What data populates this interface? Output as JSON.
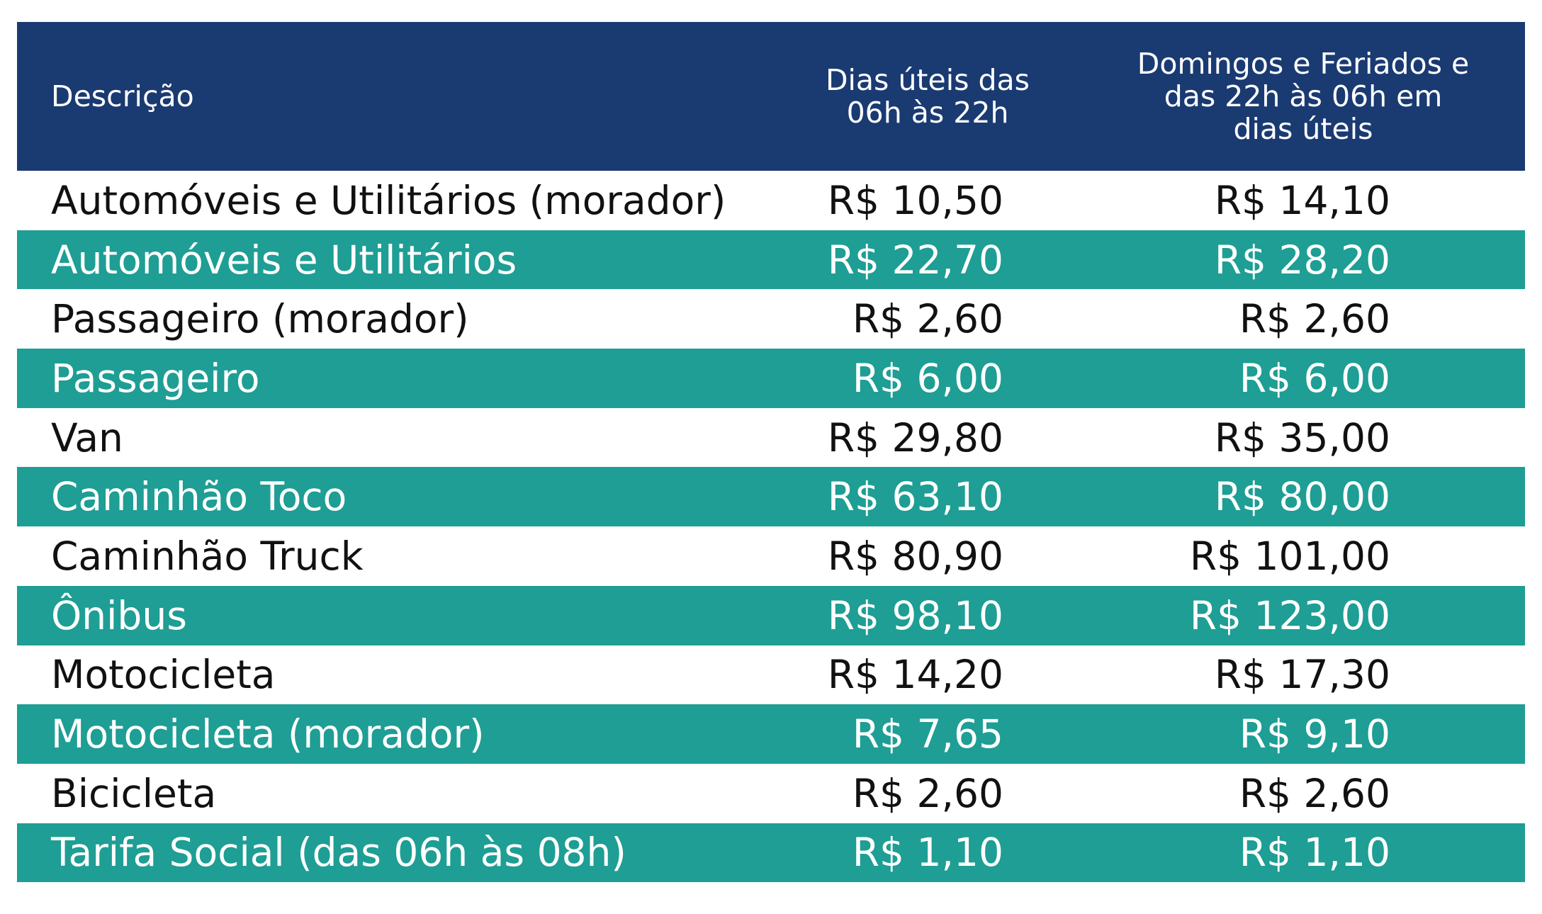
{
  "header": {
    "description": "Descrição",
    "col1_lines": [
      "Dias úteis das",
      "06h às 22h"
    ],
    "col2_lines": [
      "Domingos e Feriados e",
      "das 22h às 06h em",
      "dias úteis"
    ]
  },
  "colors": {
    "header_bg": "#1a3a72",
    "teal_row": "#1e9e94",
    "white_row": "#ffffff"
  },
  "rows": [
    {
      "description": "Automóveis e Utilitários (morador)",
      "weekday": "R$ 10,50",
      "holiday": "R$ 14,10",
      "style": "white"
    },
    {
      "description": "Automóveis e Utilitários",
      "weekday": "R$ 22,70",
      "holiday": "R$ 28,20",
      "style": "teal"
    },
    {
      "description": "Passageiro (morador)",
      "weekday": "R$ 2,60",
      "holiday": "R$ 2,60",
      "style": "white"
    },
    {
      "description": "Passageiro",
      "weekday": "R$ 6,00",
      "holiday": "R$ 6,00",
      "style": "teal"
    },
    {
      "description": "Van",
      "weekday": "R$ 29,80",
      "holiday": "R$ 35,00",
      "style": "white"
    },
    {
      "description": "Caminhão Toco",
      "weekday": "R$ 63,10",
      "holiday": "R$ 80,00",
      "style": "teal"
    },
    {
      "description": "Caminhão Truck",
      "weekday": "R$ 80,90",
      "holiday": "R$ 101,00",
      "style": "white"
    },
    {
      "description": "Ônibus",
      "weekday": "R$ 98,10",
      "holiday": "R$ 123,00",
      "style": "teal"
    },
    {
      "description": "Motocicleta",
      "weekday": "R$ 14,20",
      "holiday": "R$ 17,30",
      "style": "white"
    },
    {
      "description": "Motocicleta (morador)",
      "weekday": "R$ 7,65",
      "holiday": "R$ 9,10",
      "style": "teal"
    },
    {
      "description": "Bicicleta",
      "weekday": "R$ 2,60",
      "holiday": "R$ 2,60",
      "style": "white"
    },
    {
      "description": "Tarifa Social (das 06h às 08h)",
      "weekday": "R$ 1,10",
      "holiday": "R$ 1,10",
      "style": "teal"
    }
  ]
}
